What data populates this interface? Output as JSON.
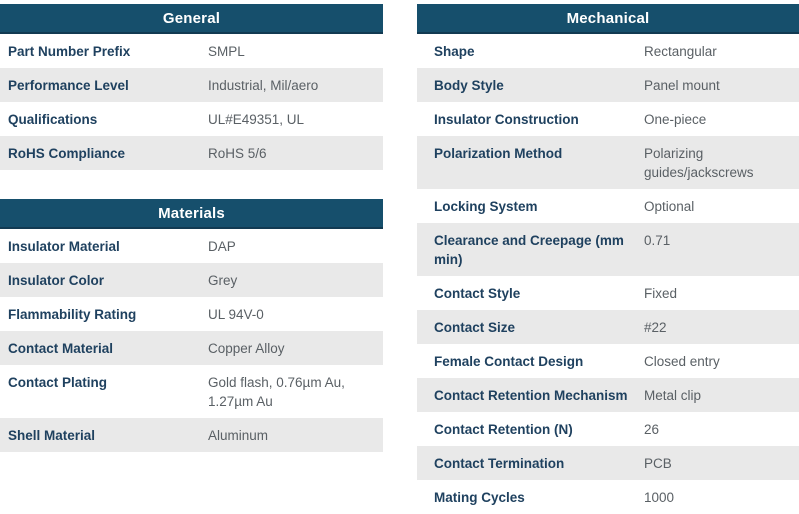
{
  "theme": {
    "header_bg": "#164f6c",
    "header_border": "#123a52",
    "header_text": "#ffffff",
    "row_alt_bg": "#e9e9e9",
    "label_color": "#1f415f",
    "value_color": "#5a6065"
  },
  "tables": {
    "general": {
      "title": "General",
      "rows": [
        {
          "label": "Part Number Prefix",
          "value": "SMPL"
        },
        {
          "label": "Performance Level",
          "value": "Industrial, Mil/aero"
        },
        {
          "label": "Qualifications",
          "value": "UL#E49351, UL"
        },
        {
          "label": "RoHS Compliance",
          "value": "RoHS 5/6"
        }
      ]
    },
    "materials": {
      "title": "Materials",
      "rows": [
        {
          "label": "Insulator Material",
          "value": "DAP"
        },
        {
          "label": "Insulator Color",
          "value": "Grey"
        },
        {
          "label": "Flammability Rating",
          "value": "UL 94V-0"
        },
        {
          "label": "Contact Material",
          "value": "Copper Alloy"
        },
        {
          "label": "Contact Plating",
          "value": "Gold flash, 0.76µm Au, 1.27µm Au"
        },
        {
          "label": "Shell Material",
          "value": "Aluminum"
        }
      ]
    },
    "mechanical": {
      "title": "Mechanical",
      "rows": [
        {
          "label": "Shape",
          "value": "Rectangular"
        },
        {
          "label": "Body Style",
          "value": "Panel mount"
        },
        {
          "label": "Insulator Construction",
          "value": "One-piece"
        },
        {
          "label": "Polarization Method",
          "value": "Polarizing guides/jackscrews"
        },
        {
          "label": "Locking System",
          "value": "Optional"
        },
        {
          "label": "Clearance and Creepage (mm min)",
          "value": "0.71"
        },
        {
          "label": "Contact Style",
          "value": "Fixed"
        },
        {
          "label": "Contact Size",
          "value": "#22"
        },
        {
          "label": "Female Contact Design",
          "value": "Closed entry"
        },
        {
          "label": "Contact Retention Mechanism",
          "value": "Metal clip"
        },
        {
          "label": "Contact Retention (N)",
          "value": "26"
        },
        {
          "label": "Contact Termination",
          "value": "PCB"
        },
        {
          "label": "Mating Cycles",
          "value": "1000"
        }
      ]
    }
  }
}
